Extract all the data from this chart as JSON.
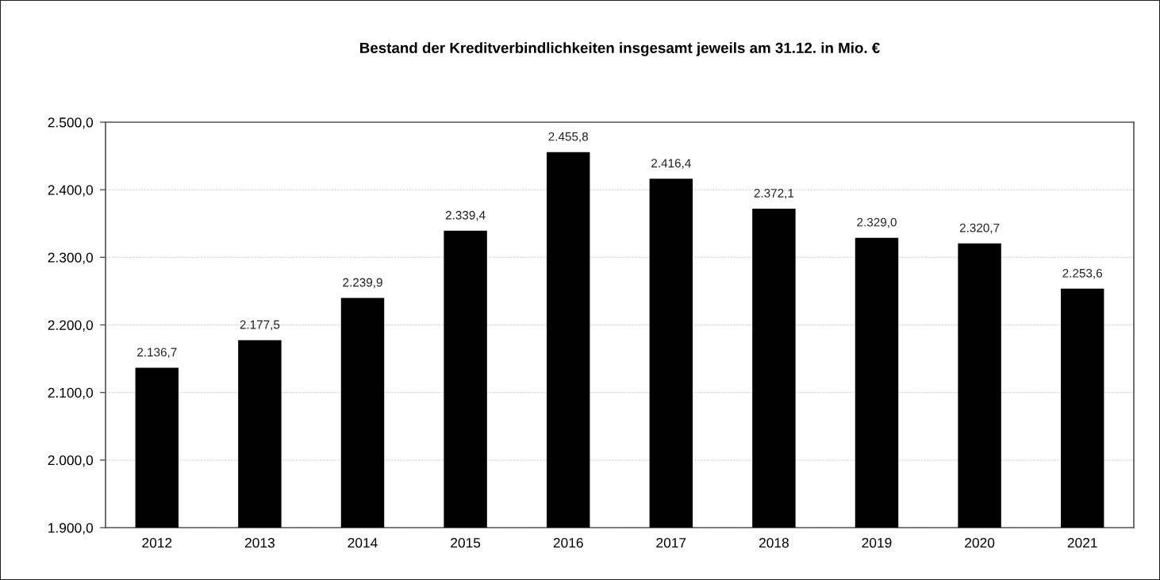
{
  "chart_data": {
    "type": "bar",
    "title": "Bestand der Kreditverbindlichkeiten insgesamt jeweils am 31.12. in Mio. €",
    "categories": [
      "2012",
      "2013",
      "2014",
      "2015",
      "2016",
      "2017",
      "2018",
      "2019",
      "2020",
      "2021"
    ],
    "values": [
      2136.7,
      2177.5,
      2239.9,
      2339.4,
      2455.8,
      2416.4,
      2372.1,
      2329.0,
      2320.7,
      2253.6
    ],
    "value_labels": [
      "2.136,7",
      "2.177,5",
      "2.239,9",
      "2.339,4",
      "2.455,8",
      "2.416,4",
      "2.372,1",
      "2.329,0",
      "2.320,7",
      "2.253,6"
    ],
    "color": "#000000",
    "ylim": [
      1900,
      2500
    ],
    "yticks": [
      {
        "value": 1900,
        "label": "1.900,0"
      },
      {
        "value": 2000,
        "label": "2.000,0"
      },
      {
        "value": 2100,
        "label": "2.100,0"
      },
      {
        "value": 2200,
        "label": "2.200,0"
      },
      {
        "value": 2300,
        "label": "2.300,0"
      },
      {
        "value": 2400,
        "label": "2.400,0"
      },
      {
        "value": 2500,
        "label": "2.500,0"
      }
    ],
    "grid": "y",
    "legend": false
  }
}
